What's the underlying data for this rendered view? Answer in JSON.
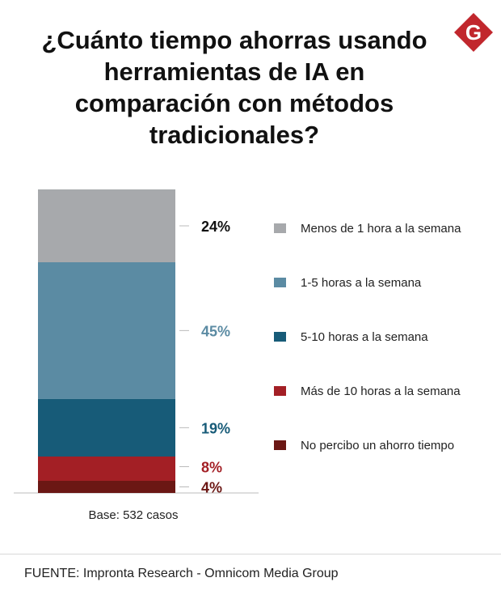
{
  "title": "¿Cuánto tiempo ahorras usando herramientas de IA en comparación con métodos tradicionales?",
  "logo": {
    "icon": "g-brand-logo",
    "letter": "G",
    "color": "#c1272d"
  },
  "chart_data": {
    "type": "bar",
    "stacked": true,
    "orientation": "vertical",
    "title": "¿Cuánto tiempo ahorras usando herramientas de IA en comparación con métodos tradicionales?",
    "ylim": [
      0,
      100
    ],
    "grid": false,
    "legend_position": "right",
    "series": [
      {
        "name": "Menos de 1 hora a la semana",
        "value": 24,
        "label": "24%",
        "color": "#a7a9ac",
        "label_color": "#111111"
      },
      {
        "name": "1-5 horas a la semana",
        "value": 45,
        "label": "45%",
        "color": "#5b8ba3",
        "label_color": "#5b8ba3"
      },
      {
        "name": "5-10 horas a la semana",
        "value": 19,
        "label": "19%",
        "color": "#175b78",
        "label_color": "#175b78"
      },
      {
        "name": "Más de 10 horas a la semana",
        "value": 8,
        "label": "8%",
        "color": "#a31f25",
        "label_color": "#a31f25"
      },
      {
        "name": "No percibo un ahorro tiempo",
        "value": 4,
        "label": "4%",
        "color": "#6b1714",
        "label_color": "#6b1714"
      }
    ]
  },
  "base_note": "Base: 532 casos",
  "source": "FUENTE: Impronta Research - Omnicom Media Group"
}
